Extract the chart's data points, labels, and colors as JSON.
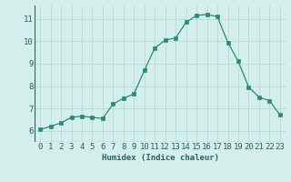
{
  "x": [
    0,
    1,
    2,
    3,
    4,
    5,
    6,
    7,
    8,
    9,
    10,
    11,
    12,
    13,
    14,
    15,
    16,
    17,
    18,
    19,
    20,
    21,
    22,
    23
  ],
  "y": [
    6.05,
    6.2,
    6.35,
    6.6,
    6.65,
    6.6,
    6.55,
    7.2,
    7.45,
    7.65,
    8.7,
    9.7,
    10.05,
    10.15,
    10.85,
    11.15,
    11.2,
    11.1,
    9.95,
    9.1,
    7.95,
    7.5,
    7.35,
    6.7
  ],
  "line_color": "#2a8a7a",
  "marker_color": "#2a8a7a",
  "bg_color": "#d4eeec",
  "grid_color": "#b0d8d4",
  "xlabel": "Humidex (Indice chaleur)",
  "xlim": [
    -0.5,
    23.5
  ],
  "ylim": [
    5.5,
    11.6
  ],
  "yticks": [
    6,
    7,
    8,
    9,
    10,
    11
  ],
  "xticks": [
    0,
    1,
    2,
    3,
    4,
    5,
    6,
    7,
    8,
    9,
    10,
    11,
    12,
    13,
    14,
    15,
    16,
    17,
    18,
    19,
    20,
    21,
    22,
    23
  ],
  "xlabel_fontsize": 6.5,
  "tick_fontsize": 6.5,
  "text_color": "#2a6060"
}
